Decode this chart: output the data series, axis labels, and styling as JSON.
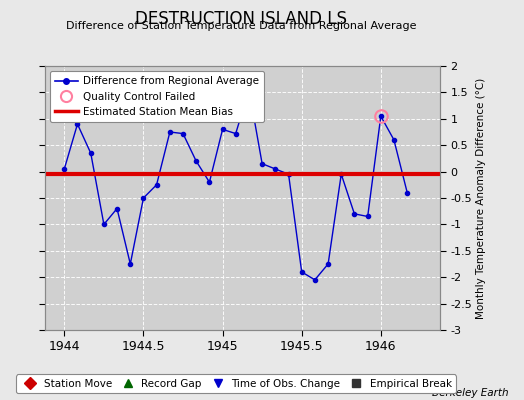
{
  "title": "DESTRUCTION ISLAND LS",
  "subtitle": "Difference of Station Temperature Data from Regional Average",
  "ylabel_right": "Monthly Temperature Anomaly Difference (°C)",
  "xlim": [
    1943.875,
    1946.375
  ],
  "ylim": [
    -3,
    2
  ],
  "yticks": [
    -3,
    -2.5,
    -2,
    -1.5,
    -1,
    -0.5,
    0,
    0.5,
    1,
    1.5,
    2
  ],
  "xticks": [
    1944,
    1944.5,
    1945,
    1945.5,
    1946
  ],
  "bias_value": -0.05,
  "fig_bg_color": "#e8e8e8",
  "plot_bg_color": "#d0d0d0",
  "line_color": "#0000cc",
  "bias_color": "#dd0000",
  "data_x": [
    1944.0,
    1944.083,
    1944.167,
    1944.25,
    1944.333,
    1944.417,
    1944.5,
    1944.583,
    1944.667,
    1944.75,
    1944.833,
    1944.917,
    1945.0,
    1945.083,
    1945.167,
    1945.25,
    1945.333,
    1945.417,
    1945.5,
    1945.583,
    1945.667,
    1945.75,
    1945.833,
    1945.917,
    1946.0,
    1946.083,
    1946.167
  ],
  "data_y": [
    0.05,
    0.9,
    0.35,
    -1.0,
    -0.7,
    -1.75,
    -0.5,
    -0.25,
    0.75,
    0.72,
    0.2,
    -0.2,
    0.8,
    0.72,
    1.55,
    0.15,
    0.05,
    -0.05,
    -1.9,
    -2.05,
    -1.75,
    -0.05,
    -0.8,
    -0.85,
    1.05,
    0.6,
    -0.4
  ],
  "qc_failed_x": [
    1946.0
  ],
  "qc_failed_y": [
    1.05
  ],
  "watermark": "Berkeley Earth",
  "bottom_legend": [
    {
      "label": "Station Move",
      "color": "#cc0000",
      "marker": "D"
    },
    {
      "label": "Record Gap",
      "color": "#006600",
      "marker": "^"
    },
    {
      "label": "Time of Obs. Change",
      "color": "#0000cc",
      "marker": "v"
    },
    {
      "label": "Empirical Break",
      "color": "#333333",
      "marker": "s"
    }
  ]
}
